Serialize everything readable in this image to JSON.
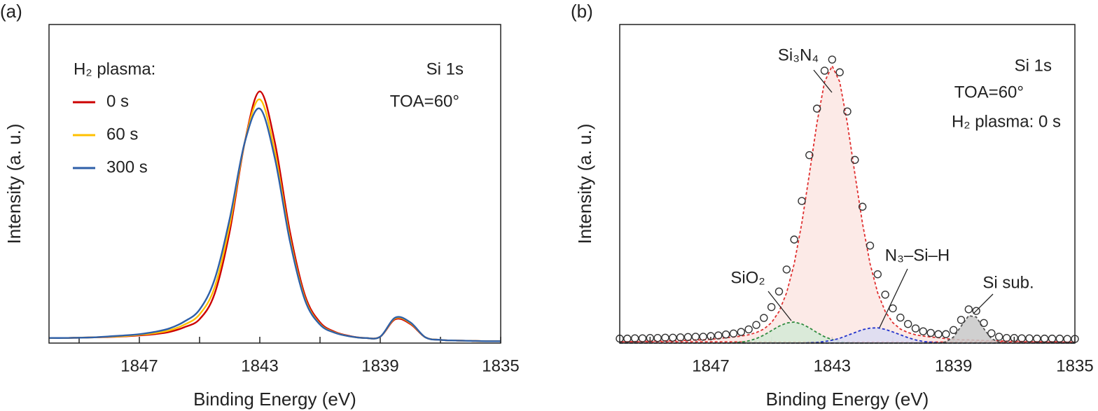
{
  "chart_data": [
    {
      "type": "line",
      "panel_label": "(a)",
      "xlabel": "Binding Energy (eV)",
      "ylabel": "Intensity (a. u.)",
      "xlim": [
        1850,
        1835
      ],
      "ylim": [
        0,
        1
      ],
      "xticks": [
        1847,
        1843,
        1839,
        1835
      ],
      "xminorticks": [
        1849,
        1845,
        1841,
        1837
      ],
      "legend_title": "H₂ plasma:",
      "annotations": [
        "Si 1s",
        "TOA=60°"
      ],
      "x": [
        1850,
        1849.5,
        1849,
        1848.5,
        1848,
        1847.5,
        1847,
        1846.5,
        1846,
        1845.5,
        1845,
        1844.5,
        1844,
        1843.5,
        1843,
        1842.5,
        1842,
        1841.5,
        1841,
        1840.5,
        1840,
        1839.5,
        1839,
        1838.5,
        1838,
        1837.5,
        1837,
        1836.5,
        1836,
        1835.5,
        1835
      ],
      "series": [
        {
          "name": "0 s",
          "color": "#cc0000",
          "values": [
            0.016,
            0.016,
            0.017,
            0.018,
            0.019,
            0.021,
            0.024,
            0.028,
            0.035,
            0.05,
            0.075,
            0.155,
            0.35,
            0.63,
            0.79,
            0.63,
            0.35,
            0.15,
            0.065,
            0.035,
            0.022,
            0.016,
            0.02,
            0.075,
            0.06,
            0.018,
            0.01,
            0.008,
            0.007,
            0.006,
            0.006
          ]
        },
        {
          "name": "60 s",
          "color": "#ffc000",
          "values": [
            0.016,
            0.016,
            0.017,
            0.018,
            0.02,
            0.022,
            0.026,
            0.031,
            0.04,
            0.058,
            0.09,
            0.175,
            0.37,
            0.63,
            0.765,
            0.6,
            0.33,
            0.14,
            0.06,
            0.033,
            0.021,
            0.016,
            0.02,
            0.078,
            0.063,
            0.018,
            0.01,
            0.008,
            0.007,
            0.006,
            0.006
          ]
        },
        {
          "name": "300 s",
          "color": "#2e5fa8",
          "values": [
            0.016,
            0.016,
            0.017,
            0.018,
            0.021,
            0.024,
            0.028,
            0.035,
            0.046,
            0.068,
            0.105,
            0.2,
            0.39,
            0.63,
            0.736,
            0.58,
            0.32,
            0.135,
            0.058,
            0.032,
            0.021,
            0.016,
            0.02,
            0.08,
            0.065,
            0.018,
            0.01,
            0.008,
            0.007,
            0.006,
            0.006
          ]
        }
      ]
    },
    {
      "type": "fit",
      "panel_label": "(b)",
      "xlabel": "Binding Energy (eV)",
      "ylabel": "Intensity (a. u.)",
      "xlim": [
        1850,
        1835
      ],
      "ylim": [
        0,
        1
      ],
      "xticks": [
        1847,
        1843,
        1839,
        1835
      ],
      "xminorticks": [
        1849,
        1845,
        1841,
        1837
      ],
      "annotations": [
        "Si 1s",
        "TOA=60°",
        "H₂ plasma: 0 s"
      ],
      "x": [
        1850,
        1849.75,
        1849.5,
        1849.25,
        1849,
        1848.75,
        1848.5,
        1848.25,
        1848,
        1847.75,
        1847.5,
        1847.25,
        1847,
        1846.75,
        1846.5,
        1846.25,
        1846,
        1845.75,
        1845.5,
        1845.25,
        1845,
        1844.75,
        1844.5,
        1844.25,
        1844,
        1843.75,
        1843.5,
        1843.25,
        1843,
        1842.75,
        1842.5,
        1842.25,
        1842,
        1841.75,
        1841.5,
        1841.25,
        1841,
        1840.75,
        1840.5,
        1840.25,
        1840,
        1839.75,
        1839.5,
        1839.25,
        1839,
        1838.75,
        1838.5,
        1838.25,
        1838,
        1837.75,
        1837.5,
        1837.25,
        1837,
        1836.75,
        1836.5,
        1836.25,
        1836,
        1835.75,
        1835.5,
        1835.25,
        1835
      ],
      "series": [
        {
          "color": "#333333",
          "values": [
            0.014,
            0.014,
            0.015,
            0.015,
            0.016,
            0.016,
            0.017,
            0.017,
            0.018,
            0.019,
            0.02,
            0.02,
            0.022,
            0.024,
            0.027,
            0.03,
            0.035,
            0.043,
            0.057,
            0.079,
            0.113,
            0.162,
            0.231,
            0.325,
            0.446,
            0.59,
            0.736,
            0.855,
            0.89,
            0.85,
            0.727,
            0.575,
            0.428,
            0.306,
            0.216,
            0.152,
            0.109,
            0.08,
            0.06,
            0.046,
            0.037,
            0.032,
            0.028,
            0.028,
            0.041,
            0.073,
            0.106,
            0.101,
            0.063,
            0.031,
            0.02,
            0.016,
            0.016,
            0.015,
            0.015,
            0.014,
            0.014,
            0.014,
            0.014,
            0.013,
            0.013
          ]
        },
        {
          "name": "Si₃N₄",
          "color": "#e03030",
          "fill": "#fbe6e3",
          "values": [
            0.004,
            0.004,
            0.005,
            0.005,
            0.006,
            0.006,
            0.007,
            0.007,
            0.008,
            0.009,
            0.01,
            0.01,
            0.012,
            0.014,
            0.017,
            0.019,
            0.022,
            0.026,
            0.033,
            0.044,
            0.064,
            0.099,
            0.158,
            0.249,
            0.376,
            0.531,
            0.691,
            0.82,
            0.87,
            0.82,
            0.691,
            0.531,
            0.376,
            0.249,
            0.158,
            0.099,
            0.064,
            0.044,
            0.033,
            0.026,
            0.022,
            0.019,
            0.017,
            0.014,
            0.012,
            0.01,
            0.01,
            0.009,
            0.008,
            0.007,
            0.007,
            0.006,
            0.006,
            0.005,
            0.005,
            0.004,
            0.004,
            0.004,
            0.004,
            0.003,
            0.003
          ]
        },
        {
          "name": "SiO₂",
          "color": "#2e8b3e",
          "fill": "#d3ead6",
          "values": [
            0,
            0,
            0,
            0,
            0,
            0,
            0,
            0,
            0,
            0,
            0,
            0,
            0,
            0,
            0,
            0.001,
            0.003,
            0.007,
            0.014,
            0.025,
            0.039,
            0.053,
            0.063,
            0.066,
            0.06,
            0.048,
            0.033,
            0.02,
            0.011,
            0.005,
            0.002,
            0.001,
            0,
            0,
            0,
            0,
            0,
            0,
            0,
            0,
            0,
            0,
            0,
            0,
            0,
            0,
            0,
            0,
            0,
            0,
            0,
            0,
            0,
            0,
            0,
            0,
            0,
            0,
            0,
            0,
            0
          ]
        },
        {
          "name": "N₃–Si–H",
          "color": "#2233cc",
          "fill": "#dadcf2",
          "values": [
            0,
            0,
            0,
            0,
            0,
            0,
            0,
            0,
            0,
            0,
            0,
            0,
            0,
            0,
            0,
            0,
            0,
            0,
            0,
            0,
            0,
            0,
            0,
            0,
            0,
            0.001,
            0.002,
            0.005,
            0.009,
            0.015,
            0.024,
            0.033,
            0.042,
            0.047,
            0.048,
            0.043,
            0.035,
            0.026,
            0.017,
            0.01,
            0.005,
            0.003,
            0.001,
            0,
            0,
            0,
            0,
            0,
            0,
            0,
            0,
            0,
            0,
            0,
            0,
            0,
            0,
            0,
            0,
            0,
            0
          ]
        },
        {
          "name": "Si sub.",
          "color": "#555555",
          "fill": "#c8c8c8",
          "values": [
            0,
            0,
            0,
            0,
            0,
            0,
            0,
            0,
            0,
            0,
            0,
            0,
            0,
            0,
            0,
            0,
            0,
            0,
            0,
            0,
            0,
            0,
            0,
            0,
            0,
            0,
            0,
            0,
            0,
            0,
            0,
            0,
            0,
            0,
            0,
            0,
            0,
            0,
            0,
            0,
            0,
            0,
            0,
            0.004,
            0.019,
            0.053,
            0.086,
            0.082,
            0.045,
            0.014,
            0.003,
            0,
            0,
            0,
            0,
            0,
            0,
            0,
            0,
            0,
            0
          ]
        }
      ]
    }
  ]
}
